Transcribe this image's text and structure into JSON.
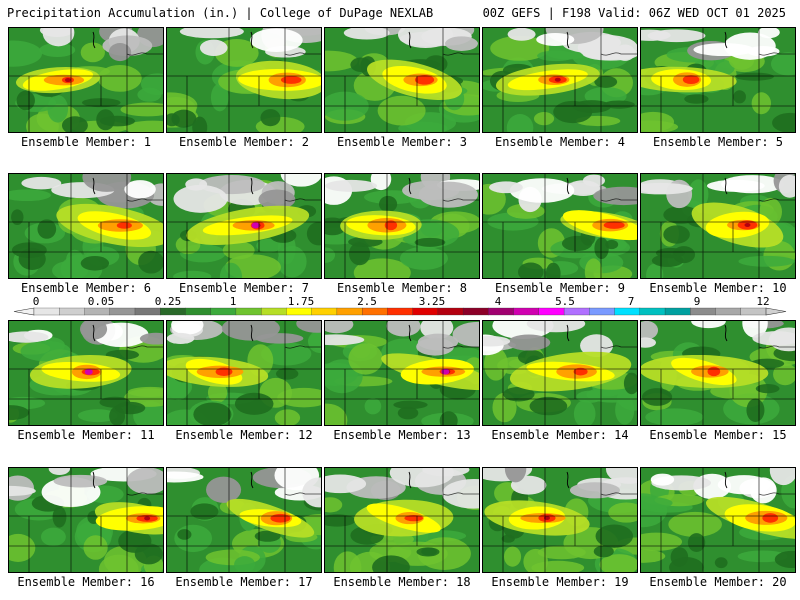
{
  "header": {
    "left": "Precipitation Accumulation (in.) | College of DuPage NEXLAB",
    "right": "00Z GEFS | F198 Valid: 06Z WED OCT 01 2025"
  },
  "members": [
    {
      "label": "Ensemble Member: 1"
    },
    {
      "label": "Ensemble Member: 2"
    },
    {
      "label": "Ensemble Member: 3"
    },
    {
      "label": "Ensemble Member: 4"
    },
    {
      "label": "Ensemble Member: 5"
    },
    {
      "label": "Ensemble Member: 6"
    },
    {
      "label": "Ensemble Member: 7"
    },
    {
      "label": "Ensemble Member: 8"
    },
    {
      "label": "Ensemble Member: 9"
    },
    {
      "label": "Ensemble Member: 10"
    },
    {
      "label": "Ensemble Member: 11"
    },
    {
      "label": "Ensemble Member: 12"
    },
    {
      "label": "Ensemble Member: 13"
    },
    {
      "label": "Ensemble Member: 14"
    },
    {
      "label": "Ensemble Member: 15"
    },
    {
      "label": "Ensemble Member: 16"
    },
    {
      "label": "Ensemble Member: 17"
    },
    {
      "label": "Ensemble Member: 18"
    },
    {
      "label": "Ensemble Member: 19"
    },
    {
      "label": "Ensemble Member: 20"
    }
  ],
  "colorbar": {
    "ticks": [
      "0",
      "0.05",
      "0.25",
      "1",
      "1.75",
      "2.5",
      "3.25",
      "4",
      "5.5",
      "7",
      "9",
      "12"
    ],
    "colors": [
      "#e6e6e6",
      "#cfcfcf",
      "#b4b4b4",
      "#969696",
      "#787878",
      "#2a6a2a",
      "#2f8f2f",
      "#3caa3c",
      "#6fc32f",
      "#b6de26",
      "#ffff00",
      "#ffd000",
      "#ffa000",
      "#ff7000",
      "#ff3000",
      "#e00000",
      "#b40010",
      "#8c0028",
      "#a00070",
      "#d000b0",
      "#ff00ff",
      "#b070ff",
      "#7a9aff",
      "#00e0ff",
      "#00c0c0",
      "#00a0a0",
      "#8c8c8c",
      "#a8a8a8",
      "#c4c4c4"
    ]
  }
}
